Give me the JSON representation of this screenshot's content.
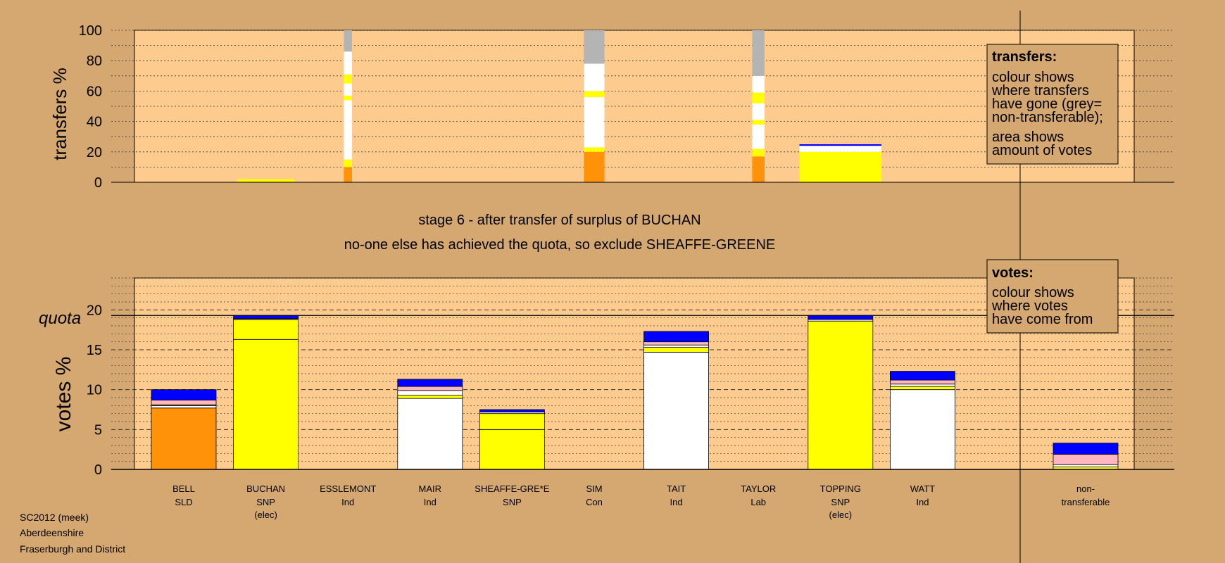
{
  "colors": {
    "background": "#d4a870",
    "plot_fill": "#fecb8e",
    "SLD": "#ff9208",
    "SNP": "#ffff00",
    "Ind": "#ffffff",
    "Con": "#0000ff",
    "Lab": "#ffb6c1",
    "non_transferable": "#b4b4b4"
  },
  "chart_data": [
    {
      "type": "bar",
      "subtype": "stacked",
      "panel": "transfers",
      "ylabel": "transfers %",
      "ylim": [
        0,
        100
      ],
      "yticks": [
        "0",
        "20",
        "40",
        "60",
        "80",
        "100"
      ],
      "categories": [
        "BELL",
        "BUCHAN",
        "ESSLEMONT",
        "MAIR",
        "SHEAFFE-GRE*E",
        "SIM",
        "TAIT",
        "TAYLOR",
        "TOPPING",
        "WATT",
        "non-transferable"
      ],
      "note": "bar width shows amount of votes transferred; colour shows where transfers have gone",
      "bars": [
        {
          "category": "BUCHAN",
          "width_votes_pct": 0.7,
          "segments": [
            {
              "party": "SNP",
              "value": 2
            }
          ]
        },
        {
          "category": "ESSLEMONT",
          "width_votes_pct": 0.1,
          "segments": [
            {
              "party": "SLD",
              "value": 10
            },
            {
              "party": "SNP",
              "value": 5
            },
            {
              "party": "Ind",
              "value": 39
            },
            {
              "party": "SNP",
              "value": 3
            },
            {
              "party": "Ind",
              "value": 8
            },
            {
              "party": "SNP",
              "value": 6
            },
            {
              "party": "Ind",
              "value": 15
            },
            {
              "party": "non_transferable",
              "value": 14
            }
          ]
        },
        {
          "category": "SIM",
          "width_votes_pct": 0.25,
          "segments": [
            {
              "party": "SLD",
              "value": 20
            },
            {
              "party": "SNP",
              "value": 3
            },
            {
              "party": "Ind",
              "value": 33
            },
            {
              "party": "SNP",
              "value": 4
            },
            {
              "party": "Ind",
              "value": 18
            },
            {
              "party": "non_transferable",
              "value": 22
            }
          ]
        },
        {
          "category": "TAYLOR",
          "width_votes_pct": 0.15,
          "segments": [
            {
              "party": "SLD",
              "value": 17
            },
            {
              "party": "SNP",
              "value": 5
            },
            {
              "party": "Ind",
              "value": 16
            },
            {
              "party": "SNP",
              "value": 3
            },
            {
              "party": "Ind",
              "value": 11
            },
            {
              "party": "SNP",
              "value": 7
            },
            {
              "party": "Ind",
              "value": 11
            },
            {
              "party": "non_transferable",
              "value": 30
            }
          ]
        },
        {
          "category": "TOPPING",
          "width_votes_pct": 1.0,
          "segments": [
            {
              "party": "SNP",
              "value": 12
            },
            {
              "party": "SNP",
              "value": 8
            },
            {
              "party": "Ind",
              "value": 4
            },
            {
              "party": "Con",
              "value": 1
            }
          ]
        }
      ]
    },
    {
      "type": "bar",
      "subtype": "stacked",
      "panel": "votes",
      "ylabel": "votes %",
      "ylim": [
        0,
        24
      ],
      "yticks": [
        "0",
        "5",
        "10",
        "15",
        "20"
      ],
      "quota_label": "quota",
      "quota": 19.3,
      "candidates": [
        {
          "name": "BELL",
          "party": "SLD",
          "elected": "",
          "segments": [
            {
              "party": "SLD",
              "value": 7.7
            },
            {
              "party": "Ind",
              "value": 0.3
            },
            {
              "party": "SNP",
              "value": 0.1
            },
            {
              "party": "Lab",
              "value": 0.6
            },
            {
              "party": "Con",
              "value": 1.3
            }
          ]
        },
        {
          "name": "BUCHAN",
          "party": "SNP",
          "elected": "(elec)",
          "segments": [
            {
              "party": "SNP",
              "value": 16.3
            },
            {
              "party": "SNP",
              "value": 2.5
            },
            {
              "party": "Ind",
              "value": 0.1
            },
            {
              "party": "Con",
              "value": 0.4
            }
          ]
        },
        {
          "name": "ESSLEMONT",
          "party": "Ind",
          "elected": "",
          "segments": []
        },
        {
          "name": "MAIR",
          "party": "Ind",
          "elected": "",
          "segments": [
            {
              "party": "Ind",
              "value": 8.9
            },
            {
              "party": "SNP",
              "value": 0.4
            },
            {
              "party": "Ind",
              "value": 0.6
            },
            {
              "party": "Lab",
              "value": 0.5
            },
            {
              "party": "Con",
              "value": 0.9
            }
          ]
        },
        {
          "name": "SHEAFFE-GRE*E",
          "party": "SNP",
          "elected": "",
          "segments": [
            {
              "party": "SNP",
              "value": 5.0
            },
            {
              "party": "SNP",
              "value": 2.0
            },
            {
              "party": "Ind",
              "value": 0.2
            },
            {
              "party": "Con",
              "value": 0.3
            }
          ]
        },
        {
          "name": "SIM",
          "party": "Con",
          "elected": "",
          "segments": []
        },
        {
          "name": "TAIT",
          "party": "Ind",
          "elected": "",
          "segments": [
            {
              "party": "Ind",
              "value": 14.7
            },
            {
              "party": "SNP",
              "value": 0.6
            },
            {
              "party": "Ind",
              "value": 0.3
            },
            {
              "party": "Lab",
              "value": 0.4
            },
            {
              "party": "Con",
              "value": 1.3
            }
          ]
        },
        {
          "name": "TAYLOR",
          "party": "Lab",
          "elected": "",
          "segments": []
        },
        {
          "name": "TOPPING",
          "party": "SNP",
          "elected": "(elec)",
          "segments": [
            {
              "party": "SNP",
              "value": 18.6
            },
            {
              "party": "Ind",
              "value": 0.2
            },
            {
              "party": "Con",
              "value": 0.5
            }
          ]
        },
        {
          "name": "WATT",
          "party": "Ind",
          "elected": "",
          "segments": [
            {
              "party": "Ind",
              "value": 10.0
            },
            {
              "party": "SNP",
              "value": 0.4
            },
            {
              "party": "Ind",
              "value": 0.3
            },
            {
              "party": "Lab",
              "value": 0.5
            },
            {
              "party": "Con",
              "value": 1.1
            }
          ]
        }
      ],
      "non_transferable": {
        "line1": "non-",
        "line2": "transferable",
        "segments": [
          {
            "party": "SNP",
            "value": 0.3
          },
          {
            "party": "Ind",
            "value": 0.3
          },
          {
            "party": "Lab",
            "value": 1.3
          },
          {
            "party": "Con",
            "value": 1.4
          }
        ]
      }
    }
  ],
  "stage_title": "stage 6 - after transfer of surplus of BUCHAN",
  "stage_subtitle": "no-one else has achieved the quota, so exclude SHEAFFE-GREENE",
  "legend_transfers": {
    "title": "transfers:",
    "lines_a": [
      "colour shows",
      "where transfers",
      "have gone (grey=",
      "non-transferable);"
    ],
    "lines_b": [
      "area shows",
      "amount of votes"
    ]
  },
  "legend_votes": {
    "title": "votes:",
    "lines": [
      "colour shows",
      "where votes",
      "have come from"
    ]
  },
  "footer": [
    "SC2012 (meek)",
    "Aberdeenshire",
    "Fraserburgh and District"
  ]
}
